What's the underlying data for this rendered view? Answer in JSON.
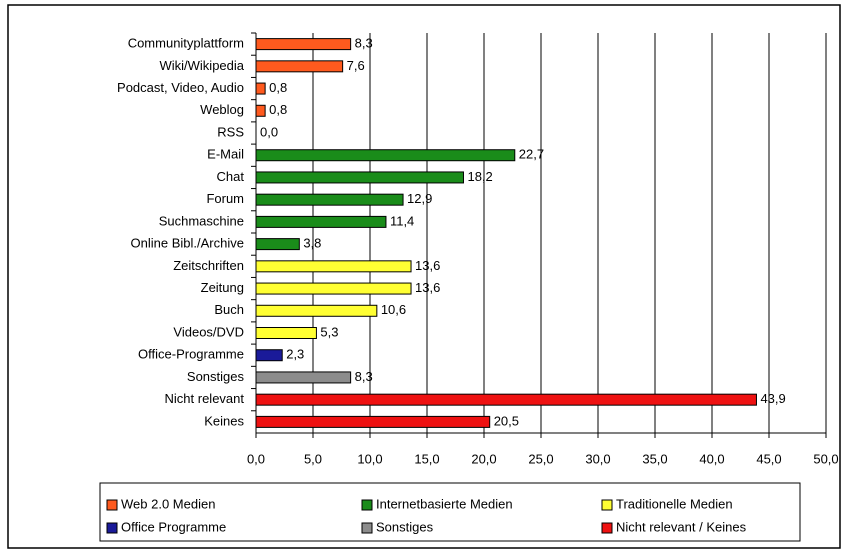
{
  "chart_data": {
    "type": "hbar",
    "categories": [
      "Communityplattform",
      "Wiki/Wikipedia",
      "Podcast, Video, Audio",
      "Weblog",
      "RSS",
      "E-Mail",
      "Chat",
      "Forum",
      "Suchmaschine",
      "Online Bibl./Archive",
      "Zeitschriften",
      "Zeitung",
      "Buch",
      "Videos/DVD",
      "Office-Programme",
      "Sonstiges",
      "Nicht relevant",
      "Keines"
    ],
    "values": [
      8.3,
      7.6,
      0.8,
      0.8,
      0.0,
      22.7,
      18.2,
      12.9,
      11.4,
      3.8,
      13.6,
      13.6,
      10.6,
      5.3,
      2.3,
      8.3,
      43.9,
      20.5
    ],
    "value_labels": [
      "8,3",
      "7,6",
      "0,8",
      "0,8",
      "0,0",
      "22,7",
      "18,2",
      "12,9",
      "11,4",
      "3,8",
      "13,6",
      "13,6",
      "10,6",
      "5,3",
      "2,3",
      "8,3",
      "43,9",
      "20,5"
    ],
    "bar_colors": [
      "#ff5a1e",
      "#ff5a1e",
      "#ff5a1e",
      "#ff5a1e",
      "#ff5a1e",
      "#1a8c1a",
      "#1a8c1a",
      "#1a8c1a",
      "#1a8c1a",
      "#1a8c1a",
      "#ffff33",
      "#ffff33",
      "#ffff33",
      "#ffff33",
      "#1a1a99",
      "#8c8c8c",
      "#ee1111",
      "#ee1111"
    ],
    "xlim": [
      0,
      50
    ],
    "xticks": [
      {
        "value": 0,
        "label": "0,0"
      },
      {
        "value": 5,
        "label": "5,0"
      },
      {
        "value": 10,
        "label": "10,0"
      },
      {
        "value": 15,
        "label": "15,0"
      },
      {
        "value": 20,
        "label": "20,0"
      },
      {
        "value": 25,
        "label": "25,0"
      },
      {
        "value": 30,
        "label": "30,0"
      },
      {
        "value": 35,
        "label": "35,0"
      },
      {
        "value": 40,
        "label": "40,0"
      },
      {
        "value": 45,
        "label": "45,0"
      },
      {
        "value": 50,
        "label": "50,0"
      }
    ],
    "grid": true,
    "legend": [
      {
        "name": "Web 2.0 Medien",
        "color": "#ff5a1e"
      },
      {
        "name": "Internetbasierte Medien",
        "color": "#1a8c1a"
      },
      {
        "name": "Traditionelle Medien",
        "color": "#ffff33"
      },
      {
        "name": "Office Programme",
        "color": "#1a1a99"
      },
      {
        "name": "Sonstiges",
        "color": "#8c8c8c"
      },
      {
        "name": "Nicht relevant / Keines",
        "color": "#ee1111"
      }
    ]
  }
}
